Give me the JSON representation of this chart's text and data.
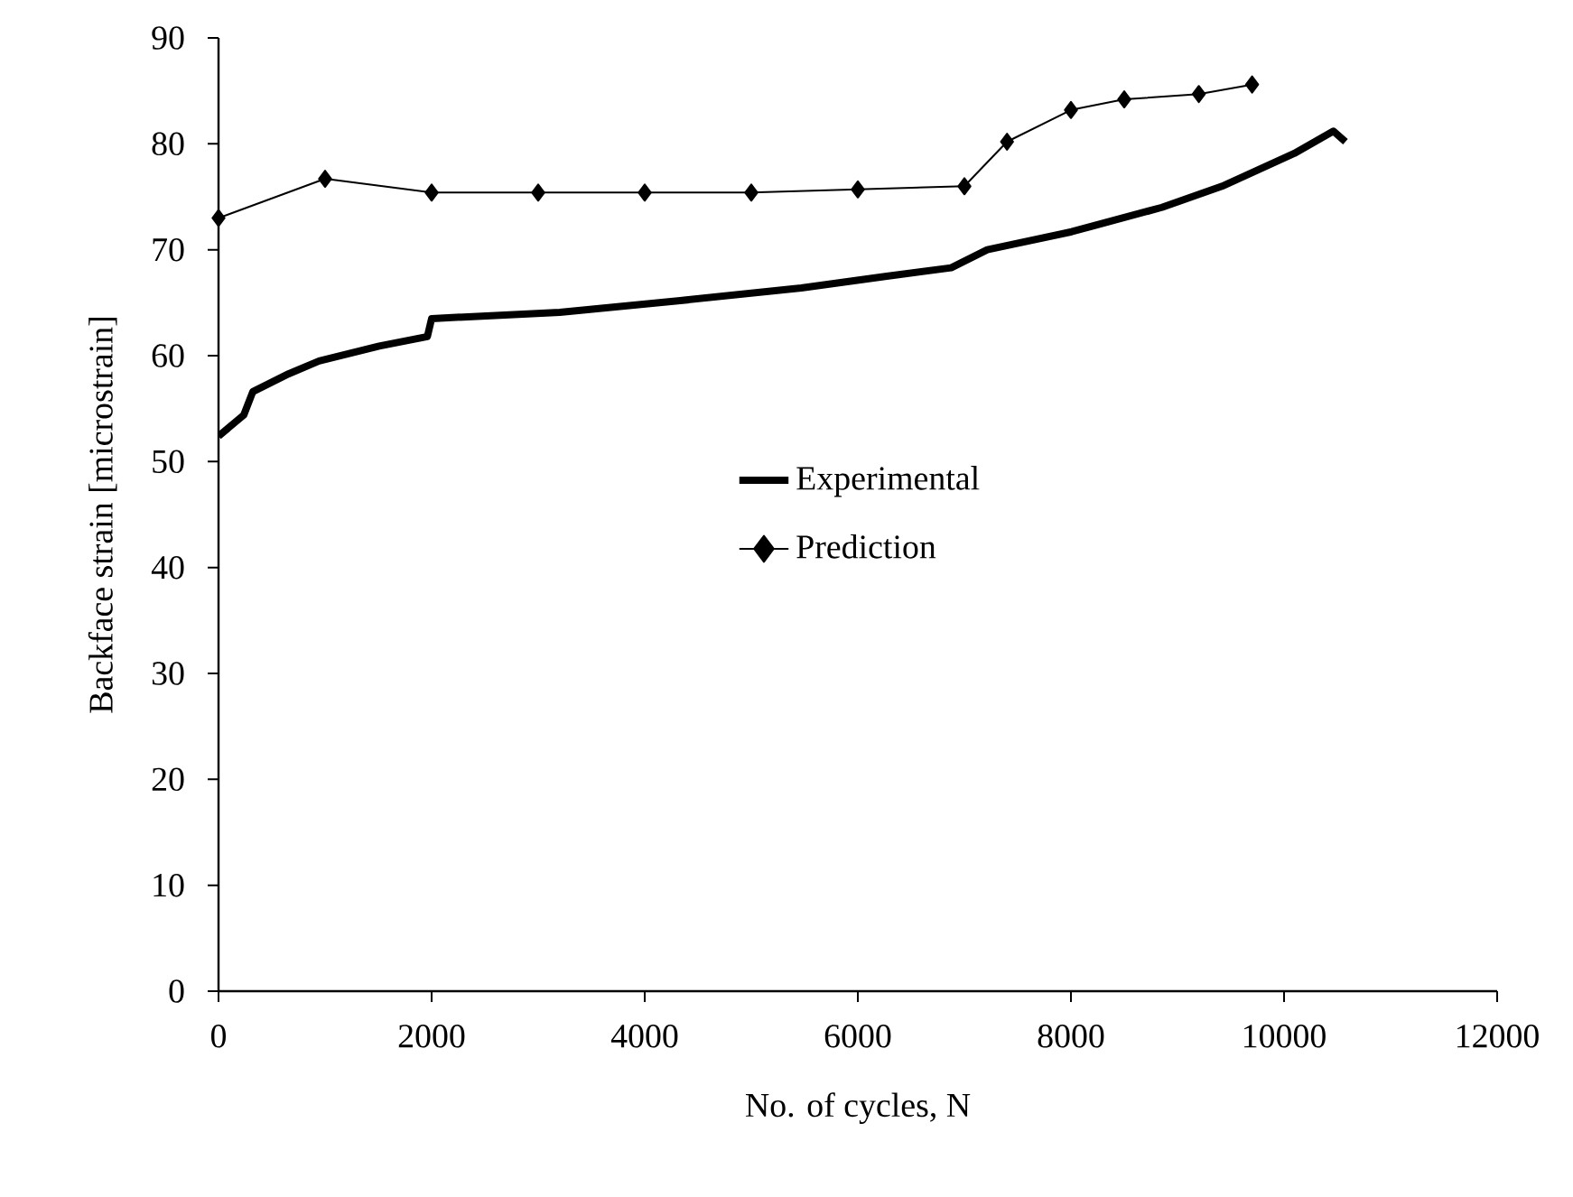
{
  "chart_data": {
    "type": "line",
    "xlabel": "No. of cycles, N",
    "ylabel": "Backface strain [microstrain]",
    "xlim": [
      0,
      12000
    ],
    "xticks": [
      0,
      2000,
      4000,
      6000,
      8000,
      10000,
      12000
    ],
    "ylim": [
      0,
      90
    ],
    "yticks": [
      0,
      10,
      20,
      30,
      40,
      50,
      60,
      70,
      80,
      90
    ],
    "grid": false,
    "legend": "center",
    "series": [
      {
        "name": "Experimental",
        "color": "#000000",
        "marker": "none",
        "line_style": "solid",
        "x": [
          0,
          237,
          322,
          661,
          944,
          1508,
          1960,
          2000,
          3203,
          4333,
          5469,
          6271,
          6876,
          7215,
          8006,
          8853,
          9418,
          10096,
          10463,
          10576
        ],
        "values": [
          52.4,
          54.4,
          56.6,
          58.3,
          59.5,
          60.9,
          61.8,
          63.5,
          64.1,
          65.2,
          66.4,
          67.5,
          68.3,
          70.0,
          71.7,
          74.0,
          76.0,
          79.1,
          81.2,
          80.2
        ]
      },
      {
        "name": "Prediction",
        "color": "#000000",
        "marker": "diamond",
        "line_style": "solid",
        "x": [
          0,
          1000,
          2000,
          3000,
          4000,
          5000,
          6000,
          7000,
          7400,
          8000,
          8500,
          9200,
          9700
        ],
        "values": [
          73.0,
          76.7,
          75.4,
          75.4,
          75.4,
          75.4,
          75.7,
          76.0,
          80.2,
          83.2,
          84.2,
          84.7,
          85.6
        ]
      }
    ]
  }
}
